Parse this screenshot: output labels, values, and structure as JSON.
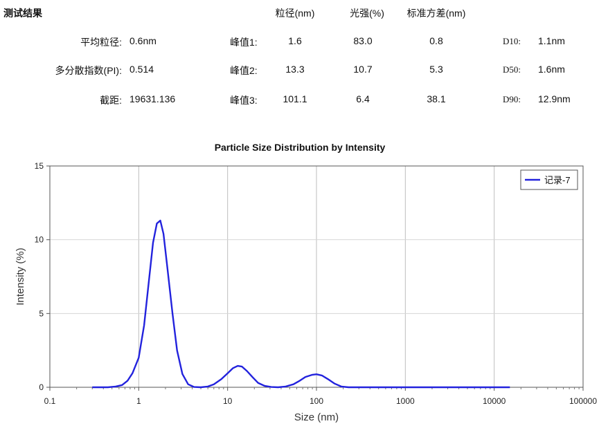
{
  "summary": {
    "section_title": "测试结果",
    "col_headers": {
      "size": "粒径(nm)",
      "intensity": "光强(%)",
      "std": "标准方差(nm)"
    },
    "left_rows": [
      {
        "label": "平均粒径:",
        "value": "0.6nm"
      },
      {
        "label": "多分散指数(PI):",
        "value": "0.514"
      },
      {
        "label": "截距:",
        "value": "19631.136"
      }
    ],
    "peaks": [
      {
        "label": "峰值1:",
        "size": "1.6",
        "intensity": "83.0",
        "std": "0.8"
      },
      {
        "label": "峰值2:",
        "size": "13.3",
        "intensity": "10.7",
        "std": "5.3"
      },
      {
        "label": "峰值3:",
        "size": "101.1",
        "intensity": "6.4",
        "std": "38.1"
      }
    ],
    "d_values": [
      {
        "label": "D10:",
        "value": "1.1nm"
      },
      {
        "label": "D50:",
        "value": "1.6nm"
      },
      {
        "label": "D90:",
        "value": "12.9nm"
      }
    ]
  },
  "chart_data": {
    "type": "line",
    "title": "Particle Size Distribution by Intensity",
    "xlabel": "Size (nm)",
    "ylabel": "Intensity (%)",
    "xscale": "log",
    "xlim": [
      0.1,
      100000
    ],
    "ylim": [
      0,
      15
    ],
    "xticks": [
      0.1,
      1,
      10,
      100,
      1000,
      10000,
      100000
    ],
    "xtick_labels": [
      "0.1",
      "1",
      "10",
      "100",
      "1000",
      "10000",
      "100000"
    ],
    "yticks": [
      0,
      5,
      10,
      15
    ],
    "ytick_labels": [
      "0",
      "5",
      "10",
      "15"
    ],
    "grid": "vertical at decades",
    "legend_position": "top-right",
    "series": [
      {
        "name": "记录-7",
        "color": "#2222dd",
        "x": [
          0.3,
          0.45,
          0.55,
          0.65,
          0.75,
          0.85,
          1.0,
          1.15,
          1.3,
          1.45,
          1.6,
          1.75,
          1.9,
          2.1,
          2.4,
          2.7,
          3.1,
          3.6,
          4.2,
          5.0,
          6.0,
          7.0,
          8.5,
          10,
          11.5,
          13,
          14.5,
          16.5,
          19,
          22,
          26,
          31,
          37,
          45,
          55,
          65,
          75,
          90,
          100,
          115,
          135,
          160,
          190,
          230,
          300,
          500,
          1000,
          3000,
          6000,
          10000,
          15000
        ],
        "y": [
          0,
          0,
          0.05,
          0.15,
          0.45,
          0.95,
          2.0,
          4.2,
          7.2,
          9.8,
          11.1,
          11.3,
          10.4,
          8.1,
          5.0,
          2.5,
          0.9,
          0.2,
          0.02,
          0,
          0.05,
          0.2,
          0.55,
          0.95,
          1.3,
          1.45,
          1.4,
          1.1,
          0.7,
          0.3,
          0.1,
          0.02,
          0,
          0.05,
          0.2,
          0.45,
          0.7,
          0.85,
          0.88,
          0.8,
          0.55,
          0.25,
          0.05,
          0,
          0,
          0,
          0,
          0,
          0,
          0,
          0
        ]
      }
    ]
  }
}
